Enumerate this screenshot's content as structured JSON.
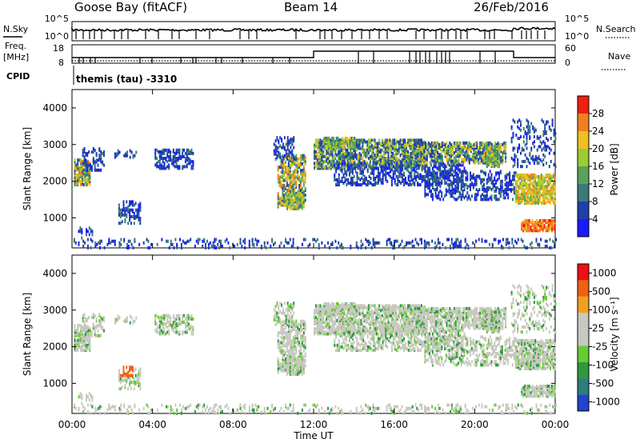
{
  "header": {
    "station": "Goose Bay (fitACF)",
    "beam": "Beam 14",
    "date": "26/Feb/2016"
  },
  "top_panels": {
    "nsky_label": "N.Sky",
    "nsky_ticks": [
      "10^5",
      "10^0"
    ],
    "nsearch_label": "N.Search",
    "nsearch_ticks": [
      "10^5",
      "10^0"
    ],
    "freq_label_1": "Freq.",
    "freq_label_2": "[MHz]",
    "freq_ticks": [
      "18",
      "8"
    ],
    "nave_label": "Nave",
    "nave_ticks": [
      "60",
      "0"
    ],
    "cpid_label": "CPID",
    "cpid_text": "themis (tau) -3310"
  },
  "chart_data": [
    {
      "type": "heatmap",
      "name": "power",
      "ylabel": "Slant Range [km]",
      "ylim": [
        180,
        4500
      ],
      "yticks": [
        "1000",
        "2000",
        "3000",
        "4000"
      ],
      "colorbar_label": "Power [dB]",
      "colorbar_ticks": [
        "4",
        "8",
        "12",
        "16",
        "20",
        "24",
        "28"
      ],
      "colorbar_colors": [
        "#1a1aff",
        "#2040a8",
        "#3a7a78",
        "#5aa25a",
        "#9acd32",
        "#f0c020",
        "#f08020",
        "#ee2010"
      ],
      "xlim": [
        0,
        24
      ]
    },
    {
      "type": "heatmap",
      "name": "velocity",
      "ylabel": "Slant Range [km]",
      "ylim": [
        180,
        4500
      ],
      "yticks": [
        "1000",
        "2000",
        "3000",
        "4000"
      ],
      "colorbar_label": "Velocity [m s⁻¹]",
      "colorbar_ticks": [
        "1000",
        "500",
        "100",
        "25",
        "-25",
        "-100",
        "-500",
        "-1000"
      ],
      "colorbar_colors": [
        "#2244cc",
        "#2e7c7c",
        "#2e9a3a",
        "#66cc33",
        "#c8c8c0",
        "#c8c8c0",
        "#f0a020",
        "#f06010",
        "#ee1010"
      ],
      "xlim": [
        0,
        24
      ]
    }
  ],
  "xaxis": {
    "ticks": [
      "00:00",
      "04:00",
      "08:00",
      "12:00",
      "16:00",
      "20:00",
      "00:00"
    ],
    "label": "Time UT"
  }
}
